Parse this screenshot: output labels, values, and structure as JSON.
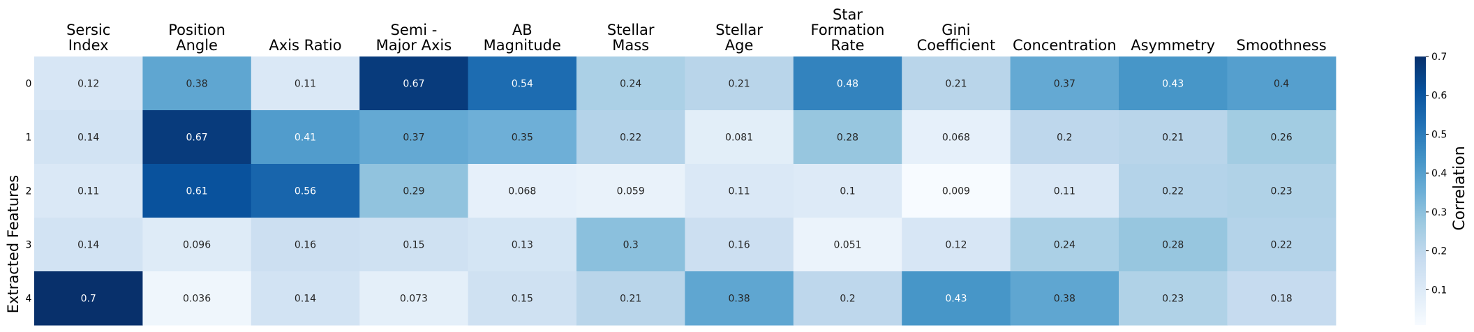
{
  "chart_data": {
    "type": "heatmap",
    "x_categories": [
      [
        "Sersic",
        "Index"
      ],
      [
        "Position",
        "Angle"
      ],
      [
        "Axis Ratio"
      ],
      [
        "Semi -",
        "Major Axis"
      ],
      [
        "AB",
        "Magnitude"
      ],
      [
        "Stellar",
        "Mass"
      ],
      [
        "Stellar",
        "Age"
      ],
      [
        "Star",
        "Formation",
        "Rate"
      ],
      [
        "Gini",
        "Coefficient"
      ],
      [
        "Concentration"
      ],
      [
        "Asymmetry"
      ],
      [
        "Smoothness"
      ]
    ],
    "y_categories": [
      "0",
      "1",
      "2",
      "3",
      "4"
    ],
    "ylabel": "Extracted Features",
    "values": [
      [
        0.12,
        0.38,
        0.11,
        0.67,
        0.54,
        0.24,
        0.21,
        0.48,
        0.21,
        0.37,
        0.43,
        0.4
      ],
      [
        0.14,
        0.67,
        0.41,
        0.37,
        0.35,
        0.22,
        0.081,
        0.28,
        0.068,
        0.2,
        0.21,
        0.26
      ],
      [
        0.11,
        0.61,
        0.56,
        0.29,
        0.068,
        0.059,
        0.11,
        0.1,
        0.009,
        0.11,
        0.22,
        0.23
      ],
      [
        0.14,
        0.096,
        0.16,
        0.15,
        0.13,
        0.3,
        0.16,
        0.051,
        0.12,
        0.24,
        0.28,
        0.22
      ],
      [
        0.7,
        0.036,
        0.14,
        0.073,
        0.15,
        0.21,
        0.38,
        0.2,
        0.43,
        0.38,
        0.23,
        0.18
      ]
    ],
    "colorbar": {
      "label": "Correlation",
      "ticks": [
        "0.1",
        "0.2",
        "0.3",
        "0.4",
        "0.5",
        "0.6",
        "0.7"
      ],
      "range": [
        0.009,
        0.7
      ]
    },
    "colormap": "Blues",
    "colors": [
      "#f7fbff",
      "#deebf7",
      "#c6dbef",
      "#9ecae1",
      "#6baed6",
      "#4292c6",
      "#2171b5",
      "#08519c",
      "#08306b"
    ]
  }
}
